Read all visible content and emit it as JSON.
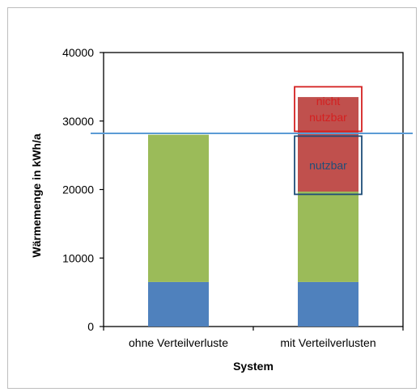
{
  "chart_data": {
    "type": "bar",
    "stacked": true,
    "title": "",
    "xlabel": "System",
    "ylabel": "Wärmemenge in kWh/a",
    "ylim": [
      0,
      40000
    ],
    "yticks": [
      "0",
      "10000",
      "20000",
      "30000",
      "40000"
    ],
    "categories": [
      "ohne Verteilverluste",
      "mit Verteilverlusten"
    ],
    "series": [
      {
        "color": "#4f81bd",
        "values": [
          6500,
          6500
        ]
      },
      {
        "color": "#9bbb59",
        "values": [
          21500,
          13200
        ]
      },
      {
        "color": "#c0504d",
        "values": [
          0,
          13800
        ]
      }
    ],
    "reference_line": {
      "value": 28200,
      "color": "#5b9bd5"
    },
    "annotations": [
      {
        "text": "nicht nutzbar",
        "lines": [
          "nicht",
          "nutzbar"
        ],
        "category": "mit Verteilverlusten",
        "y_from": 28500,
        "y_to": 35000,
        "frame_color": "#d42020"
      },
      {
        "text": "nutzbar",
        "lines": [
          "nutzbar"
        ],
        "category": "mit Verteilverlusten",
        "y_from": 19300,
        "y_to": 27800,
        "frame_color": "#1f4e79"
      }
    ],
    "grid": false,
    "legend": "none"
  }
}
